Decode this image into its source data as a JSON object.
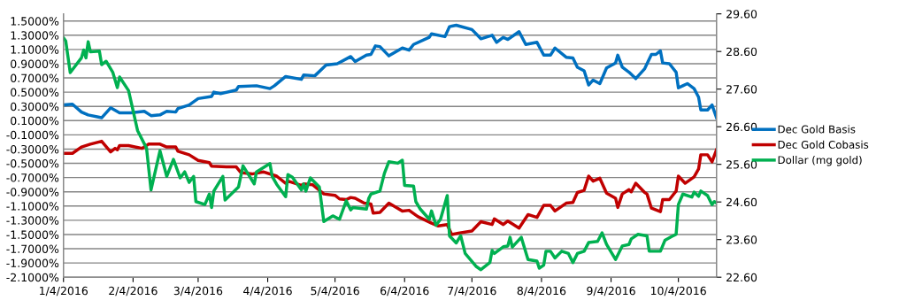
{
  "chart_data": {
    "type": "line",
    "xlim": [
      "2016-01-04",
      "2016-10-21"
    ],
    "xticks": [
      {
        "value": "2016-01-04",
        "label": "1/4/2016"
      },
      {
        "value": "2016-02-04",
        "label": "2/4/2016"
      },
      {
        "value": "2016-03-04",
        "label": "3/4/2016"
      },
      {
        "value": "2016-04-04",
        "label": "4/4/2016"
      },
      {
        "value": "2016-05-04",
        "label": "5/4/2016"
      },
      {
        "value": "2016-06-04",
        "label": "6/4/2016"
      },
      {
        "value": "2016-07-04",
        "label": "7/4/2016"
      },
      {
        "value": "2016-08-04",
        "label": "8/4/2016"
      },
      {
        "value": "2016-09-04",
        "label": "9/4/2016"
      },
      {
        "value": "2016-10-04",
        "label": "10/4/2016"
      }
    ],
    "ylim": [
      -2.1,
      1.6
    ],
    "yticks": [
      {
        "value": 1.5,
        "label": "1.5000%"
      },
      {
        "value": 1.3,
        "label": "1.3000%"
      },
      {
        "value": 1.1,
        "label": "1.1000%"
      },
      {
        "value": 0.9,
        "label": "0.9000%"
      },
      {
        "value": 0.7,
        "label": "0.7000%"
      },
      {
        "value": 0.5,
        "label": "0.5000%"
      },
      {
        "value": 0.3,
        "label": "0.3000%"
      },
      {
        "value": 0.1,
        "label": "0.1000%"
      },
      {
        "value": -0.1,
        "label": "-0.1000%"
      },
      {
        "value": -0.3,
        "label": "-0.3000%"
      },
      {
        "value": -0.5,
        "label": "-0.5000%"
      },
      {
        "value": -0.7,
        "label": "-0.7000%"
      },
      {
        "value": -0.9,
        "label": "-0.9000%"
      },
      {
        "value": -1.1,
        "label": "-1.1000%"
      },
      {
        "value": -1.3,
        "label": "-1.3000%"
      },
      {
        "value": -1.5,
        "label": "-1.5000%"
      },
      {
        "value": -1.7,
        "label": "-1.7000%"
      },
      {
        "value": -1.9,
        "label": "-1.9000%"
      },
      {
        "value": -2.1,
        "label": "-2.1000%"
      }
    ],
    "y2lim": [
      22.6,
      29.6
    ],
    "y2ticks": [
      {
        "value": 22.6,
        "label": "22.60"
      },
      {
        "value": 23.6,
        "label": "23.60"
      },
      {
        "value": 24.6,
        "label": "24.60"
      },
      {
        "value": 25.6,
        "label": "25.60"
      },
      {
        "value": 26.6,
        "label": "26.60"
      },
      {
        "value": 27.6,
        "label": "27.60"
      },
      {
        "value": 28.6,
        "label": "28.60"
      },
      {
        "value": 29.6,
        "label": "29.60"
      }
    ],
    "grid": "y",
    "legend": "right",
    "marker": "none",
    "line_style": "solid",
    "series": [
      {
        "name": "Dec Gold Basis",
        "color": "#0070c0",
        "x": [
          "2016-01-04",
          "2016-01-08",
          "2016-01-12",
          "2016-01-15",
          "2016-01-21",
          "2016-01-25",
          "2016-01-29",
          "2016-02-03",
          "2016-02-09",
          "2016-02-12",
          "2016-02-16",
          "2016-02-19",
          "2016-02-23",
          "2016-02-24",
          "2016-02-29",
          "2016-03-04",
          "2016-03-10",
          "2016-03-11",
          "2016-03-14",
          "2016-03-21",
          "2016-03-22",
          "2016-03-30",
          "2016-04-05",
          "2016-04-07",
          "2016-04-12",
          "2016-04-19",
          "2016-04-20",
          "2016-04-25",
          "2016-04-30",
          "2016-05-05",
          "2016-05-11",
          "2016-05-13",
          "2016-05-18",
          "2016-05-20",
          "2016-05-22",
          "2016-05-24",
          "2016-05-28",
          "2016-06-03",
          "2016-06-06",
          "2016-06-08",
          "2016-06-15",
          "2016-06-16",
          "2016-06-22",
          "2016-06-24",
          "2016-06-27",
          "2016-07-04",
          "2016-07-08",
          "2016-07-13",
          "2016-07-15",
          "2016-07-18",
          "2016-07-20",
          "2016-07-25",
          "2016-07-28",
          "2016-08-02",
          "2016-08-05",
          "2016-08-08",
          "2016-08-10",
          "2016-08-15",
          "2016-08-18",
          "2016-08-20",
          "2016-08-23",
          "2016-08-25",
          "2016-08-27",
          "2016-08-30",
          "2016-09-02",
          "2016-09-06",
          "2016-09-07",
          "2016-09-09",
          "2016-09-12",
          "2016-09-15",
          "2016-09-19",
          "2016-09-22",
          "2016-09-24",
          "2016-09-26",
          "2016-09-27",
          "2016-09-30",
          "2016-10-03",
          "2016-10-04",
          "2016-10-06",
          "2016-10-08",
          "2016-10-11",
          "2016-10-13",
          "2016-10-14",
          "2016-10-17",
          "2016-10-19",
          "2016-10-21"
        ],
        "values": [
          0.32,
          0.33,
          0.22,
          0.18,
          0.14,
          0.28,
          0.21,
          0.21,
          0.23,
          0.17,
          0.18,
          0.23,
          0.22,
          0.27,
          0.32,
          0.41,
          0.44,
          0.5,
          0.48,
          0.53,
          0.58,
          0.59,
          0.55,
          0.59,
          0.72,
          0.68,
          0.74,
          0.73,
          0.88,
          0.9,
          1.0,
          0.93,
          1.02,
          1.03,
          1.15,
          1.14,
          1.01,
          1.12,
          1.09,
          1.17,
          1.27,
          1.32,
          1.28,
          1.42,
          1.44,
          1.38,
          1.25,
          1.3,
          1.2,
          1.27,
          1.24,
          1.35,
          1.17,
          1.2,
          1.02,
          1.02,
          1.12,
          0.99,
          0.98,
          0.85,
          0.8,
          0.6,
          0.67,
          0.62,
          0.84,
          0.91,
          1.02,
          0.85,
          0.78,
          0.69,
          0.83,
          1.03,
          1.03,
          1.08,
          0.91,
          0.9,
          0.78,
          0.56,
          0.59,
          0.62,
          0.55,
          0.43,
          0.25,
          0.25,
          0.32,
          0.14
        ]
      },
      {
        "name": "Dec Gold Cobasis",
        "color": "#c00000",
        "x": [
          "2016-01-04",
          "2016-01-08",
          "2016-01-12",
          "2016-01-16",
          "2016-01-21",
          "2016-01-25",
          "2016-01-27",
          "2016-01-28",
          "2016-01-29",
          "2016-02-02",
          "2016-02-08",
          "2016-02-11",
          "2016-02-16",
          "2016-02-19",
          "2016-02-23",
          "2016-02-24",
          "2016-02-29",
          "2016-03-04",
          "2016-03-09",
          "2016-03-10",
          "2016-03-17",
          "2016-03-21",
          "2016-03-23",
          "2016-03-28",
          "2016-04-02",
          "2016-04-08",
          "2016-04-12",
          "2016-04-13",
          "2016-04-19",
          "2016-04-20",
          "2016-04-24",
          "2016-04-29",
          "2016-05-04",
          "2016-05-06",
          "2016-05-09",
          "2016-05-11",
          "2016-05-13",
          "2016-05-17",
          "2016-05-20",
          "2016-05-21",
          "2016-05-24",
          "2016-05-28",
          "2016-06-03",
          "2016-06-06",
          "2016-06-10",
          "2016-06-16",
          "2016-06-19",
          "2016-06-23",
          "2016-06-25",
          "2016-06-28",
          "2016-07-04",
          "2016-07-08",
          "2016-07-13",
          "2016-07-14",
          "2016-07-18",
          "2016-07-20",
          "2016-07-25",
          "2016-07-29",
          "2016-08-02",
          "2016-08-05",
          "2016-08-08",
          "2016-08-10",
          "2016-08-15",
          "2016-08-18",
          "2016-08-20",
          "2016-08-23",
          "2016-08-25",
          "2016-08-27",
          "2016-08-30",
          "2016-09-02",
          "2016-09-06",
          "2016-09-07",
          "2016-09-09",
          "2016-09-12",
          "2016-09-13",
          "2016-09-15",
          "2016-09-19",
          "2016-09-20",
          "2016-09-22",
          "2016-09-26",
          "2016-09-27",
          "2016-09-30",
          "2016-10-03",
          "2016-10-04",
          "2016-10-07",
          "2016-10-11",
          "2016-10-13",
          "2016-10-14",
          "2016-10-17",
          "2016-10-19",
          "2016-10-21"
        ],
        "values": [
          -0.36,
          -0.36,
          -0.27,
          -0.23,
          -0.19,
          -0.34,
          -0.29,
          -0.31,
          -0.25,
          -0.25,
          -0.29,
          -0.23,
          -0.23,
          -0.27,
          -0.27,
          -0.33,
          -0.38,
          -0.46,
          -0.49,
          -0.54,
          -0.55,
          -0.55,
          -0.63,
          -0.65,
          -0.62,
          -0.68,
          -0.78,
          -0.75,
          -0.81,
          -0.79,
          -0.8,
          -0.93,
          -0.95,
          -1.0,
          -1.01,
          -0.98,
          -0.99,
          -1.06,
          -1.07,
          -1.2,
          -1.19,
          -1.06,
          -1.17,
          -1.16,
          -1.25,
          -1.34,
          -1.38,
          -1.36,
          -1.5,
          -1.48,
          -1.45,
          -1.32,
          -1.36,
          -1.28,
          -1.36,
          -1.31,
          -1.41,
          -1.22,
          -1.26,
          -1.09,
          -1.09,
          -1.17,
          -1.06,
          -1.05,
          -0.91,
          -0.88,
          -0.68,
          -0.75,
          -0.71,
          -0.92,
          -0.99,
          -1.12,
          -0.93,
          -0.87,
          -0.9,
          -0.78,
          -0.91,
          -0.93,
          -1.13,
          -1.18,
          -1.01,
          -1.01,
          -0.89,
          -0.68,
          -0.78,
          -0.69,
          -0.58,
          -0.38,
          -0.38,
          -0.48,
          -0.31
        ]
      },
      {
        "name": "Dollar (mg gold)",
        "color": "#00b050",
        "axis": "y2",
        "x": [
          "2016-01-04",
          "2016-01-05",
          "2016-01-07",
          "2016-01-12",
          "2016-01-13",
          "2016-01-14",
          "2016-01-15",
          "2016-01-16",
          "2016-01-20",
          "2016-01-21",
          "2016-01-23",
          "2016-01-26",
          "2016-01-28",
          "2016-01-29",
          "2016-02-02",
          "2016-02-06",
          "2016-02-10",
          "2016-02-12",
          "2016-02-16",
          "2016-02-19",
          "2016-02-22",
          "2016-02-25",
          "2016-02-27",
          "2016-02-29",
          "2016-03-02",
          "2016-03-03",
          "2016-03-07",
          "2016-03-09",
          "2016-03-10",
          "2016-03-11",
          "2016-03-15",
          "2016-03-16",
          "2016-03-22",
          "2016-03-24",
          "2016-03-29",
          "2016-03-30",
          "2016-04-05",
          "2016-04-06",
          "2016-04-08",
          "2016-04-12",
          "2016-04-13",
          "2016-04-15",
          "2016-04-19",
          "2016-04-20",
          "2016-04-21",
          "2016-04-23",
          "2016-04-27",
          "2016-04-29",
          "2016-05-03",
          "2016-05-06",
          "2016-05-09",
          "2016-05-11",
          "2016-05-12",
          "2016-05-18",
          "2016-05-19",
          "2016-05-20",
          "2016-05-24",
          "2016-05-26",
          "2016-05-28",
          "2016-06-01",
          "2016-06-03",
          "2016-06-04",
          "2016-06-08",
          "2016-06-09",
          "2016-06-11",
          "2016-06-15",
          "2016-06-16",
          "2016-06-18",
          "2016-06-20",
          "2016-06-23",
          "2016-06-24",
          "2016-06-27",
          "2016-06-29",
          "2016-07-01",
          "2016-07-06",
          "2016-07-08",
          "2016-07-12",
          "2016-07-13",
          "2016-07-14",
          "2016-07-18",
          "2016-07-20",
          "2016-07-21",
          "2016-07-22",
          "2016-07-26",
          "2016-07-29",
          "2016-08-02",
          "2016-08-03",
          "2016-08-05",
          "2016-08-06",
          "2016-08-08",
          "2016-08-10",
          "2016-08-13",
          "2016-08-16",
          "2016-08-18",
          "2016-08-20",
          "2016-08-23",
          "2016-08-25",
          "2016-08-29",
          "2016-08-31",
          "2016-09-02",
          "2016-09-06",
          "2016-09-09",
          "2016-09-12",
          "2016-09-13",
          "2016-09-16",
          "2016-09-20",
          "2016-09-21",
          "2016-09-26",
          "2016-09-28",
          "2016-10-01",
          "2016-10-03",
          "2016-10-04",
          "2016-10-06",
          "2016-10-10",
          "2016-10-11",
          "2016-10-13",
          "2016-10-14",
          "2016-10-17",
          "2016-10-19",
          "2016-10-20",
          "2016-10-21"
        ],
        "values": [
          28.96,
          28.88,
          28.04,
          28.43,
          28.64,
          28.43,
          28.86,
          28.59,
          28.61,
          28.25,
          28.34,
          28.04,
          27.64,
          27.92,
          27.56,
          26.5,
          26.03,
          24.92,
          25.96,
          25.28,
          25.73,
          25.24,
          25.4,
          25.12,
          25.28,
          24.61,
          24.53,
          24.81,
          24.45,
          24.89,
          25.28,
          24.65,
          25.0,
          25.56,
          25.08,
          25.4,
          25.62,
          25.28,
          25.07,
          24.74,
          25.33,
          25.26,
          24.92,
          25.08,
          24.89,
          25.24,
          25.0,
          24.08,
          24.23,
          24.14,
          24.63,
          24.39,
          24.45,
          24.41,
          24.69,
          24.81,
          24.89,
          25.36,
          25.67,
          25.63,
          25.71,
          25.04,
          25.02,
          24.61,
          24.41,
          24.14,
          24.36,
          23.98,
          24.14,
          24.77,
          23.7,
          23.51,
          23.7,
          23.23,
          22.88,
          22.8,
          22.99,
          23.31,
          23.23,
          23.41,
          23.43,
          23.66,
          23.4,
          23.66,
          23.07,
          23.03,
          22.84,
          22.92,
          23.29,
          23.29,
          23.11,
          23.29,
          23.23,
          22.99,
          23.23,
          23.29,
          23.52,
          23.55,
          23.78,
          23.47,
          23.07,
          23.43,
          23.47,
          23.62,
          23.74,
          23.7,
          23.29,
          23.29,
          23.58,
          23.68,
          23.74,
          24.53,
          24.81,
          24.73,
          24.86,
          24.75,
          24.89,
          24.77,
          24.53,
          24.61,
          24.57
        ]
      }
    ]
  }
}
